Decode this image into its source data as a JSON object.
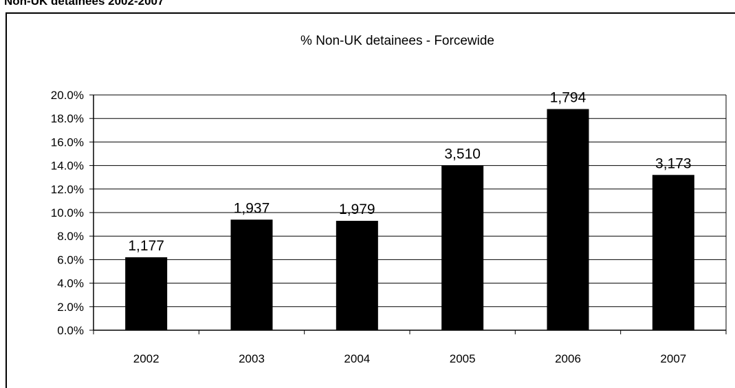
{
  "page": {
    "heading": "Non-UK detainees 2002-2007"
  },
  "chart_data": {
    "type": "bar",
    "title": "% Non-UK detainees - Forcewide",
    "categories": [
      "2002",
      "2003",
      "2004",
      "2005",
      "2006",
      "2007"
    ],
    "values": [
      6.2,
      9.4,
      9.3,
      14.0,
      18.8,
      13.2
    ],
    "data_labels": [
      "1,177",
      "1,937",
      "1,979",
      "3,510",
      "1,794",
      "3,173"
    ],
    "ylim": [
      0,
      20
    ],
    "y_ticks": [
      "0.0%",
      "2.0%",
      "4.0%",
      "6.0%",
      "8.0%",
      "10.0%",
      "12.0%",
      "14.0%",
      "16.0%",
      "18.0%",
      "20.0%"
    ],
    "xlabel": "",
    "ylabel": "",
    "grid": true,
    "legend": "none",
    "colors": {
      "bar": "#000000",
      "grid": "#000000",
      "background": "#ffffff"
    }
  }
}
